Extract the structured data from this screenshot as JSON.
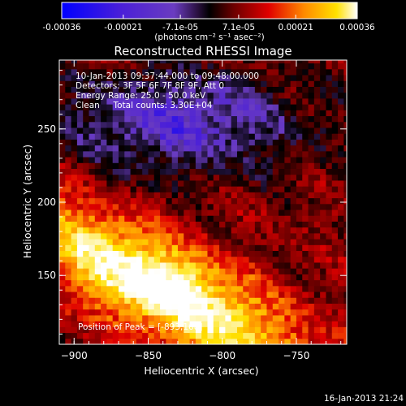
{
  "chart_data": {
    "type": "heatmap",
    "title": "Reconstructed RHESSI Image",
    "xlabel": "Heliocentric X (arcsec)",
    "ylabel": "Heliocentric Y (arcsec)",
    "xlim": [
      -910,
      -716
    ],
    "ylim": [
      103,
      297
    ],
    "x_ticks": [
      -900,
      -850,
      -800,
      -750
    ],
    "y_ticks": [
      150,
      200,
      250
    ],
    "grid": false,
    "colorbar": {
      "position": "top",
      "min": -0.00036,
      "max": 0.00036,
      "tick_values": [
        -0.00036,
        -0.00021,
        -7.1e-05,
        7.1e-05,
        0.00021,
        0.00036
      ],
      "tick_labels": [
        "-0.00036",
        "-0.00021",
        "-7.1e-05",
        "7.1e-05",
        "0.00021",
        "0.00036"
      ],
      "unit_label": "(photons cm⁻² s⁻¹ asec⁻²)"
    },
    "annotations": [
      "10-Jan-2013 09:37:44.000 to 09:48:00.000",
      "Detectors: 3F 5F 6F 7F 8F 9F, Att 0",
      "Energy Range: 25.0 - 50.0 keV",
      "Clean     Total counts: 3.30E+04"
    ],
    "peak_label": "Position of Peak = [-893,168]",
    "peak": {
      "x": -893,
      "y": 168
    },
    "colormap": [
      "#0000ff",
      "#4a1fd8",
      "#6a3cc0",
      "#000000",
      "#7a0000",
      "#e00000",
      "#ff8a00",
      "#ffe100",
      "#ffffff"
    ]
  },
  "footer": {
    "timestamp": "16-Jan-2013 21:24"
  }
}
